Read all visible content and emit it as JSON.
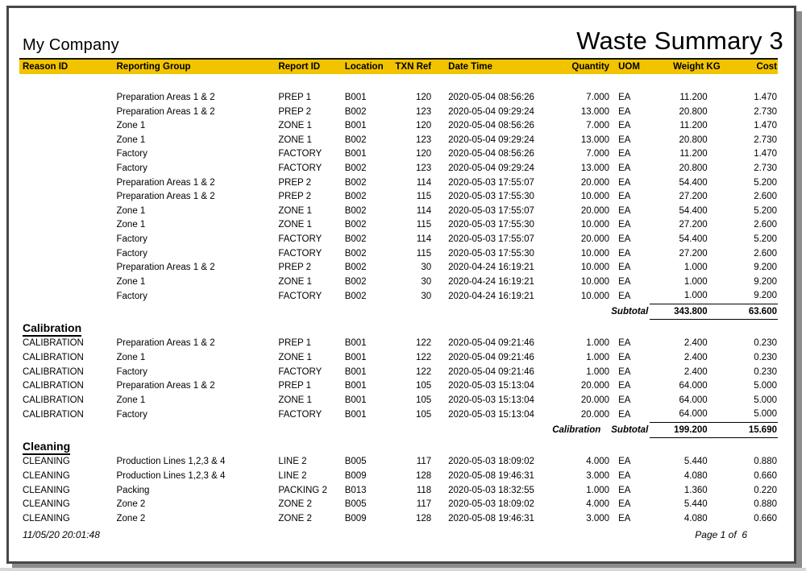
{
  "header": {
    "company": "My Company",
    "title": "Waste Summary 3"
  },
  "colors": {
    "header_band": "#F2C400",
    "frame": "#474747",
    "shadow": "#8c8c8c"
  },
  "footer": {
    "printed": "11/05/20 20:01:48",
    "page": "Page 1 of  6"
  },
  "table": {
    "columns": [
      "Reason ID",
      "Reporting Group",
      "Report ID",
      "Location",
      "TXN Ref",
      "Date Time",
      "Quantity",
      "UOM",
      "Weight KG",
      "Cost"
    ],
    "sections": [
      {
        "title": "",
        "rows": [
          {
            "reason": "",
            "group": "Preparation Areas 1 & 2",
            "report_id": "PREP 1",
            "location": "B001",
            "txn": "120",
            "datetime": "2020-05-04 08:56:26",
            "qty": "7.000",
            "uom": "EA",
            "weight": "11.200",
            "cost": "1.470"
          },
          {
            "reason": "",
            "group": "Preparation Areas 1 & 2",
            "report_id": "PREP 2",
            "location": "B002",
            "txn": "123",
            "datetime": "2020-05-04 09:29:24",
            "qty": "13.000",
            "uom": "EA",
            "weight": "20.800",
            "cost": "2.730"
          },
          {
            "reason": "",
            "group": "Zone 1",
            "report_id": "ZONE 1",
            "location": "B001",
            "txn": "120",
            "datetime": "2020-05-04 08:56:26",
            "qty": "7.000",
            "uom": "EA",
            "weight": "11.200",
            "cost": "1.470"
          },
          {
            "reason": "",
            "group": "Zone 1",
            "report_id": "ZONE 1",
            "location": "B002",
            "txn": "123",
            "datetime": "2020-05-04 09:29:24",
            "qty": "13.000",
            "uom": "EA",
            "weight": "20.800",
            "cost": "2.730"
          },
          {
            "reason": "",
            "group": "Factory",
            "report_id": "FACTORY",
            "location": "B001",
            "txn": "120",
            "datetime": "2020-05-04 08:56:26",
            "qty": "7.000",
            "uom": "EA",
            "weight": "11.200",
            "cost": "1.470"
          },
          {
            "reason": "",
            "group": "Factory",
            "report_id": "FACTORY",
            "location": "B002",
            "txn": "123",
            "datetime": "2020-05-04 09:29:24",
            "qty": "13.000",
            "uom": "EA",
            "weight": "20.800",
            "cost": "2.730"
          },
          {
            "reason": "",
            "group": "Preparation Areas 1 & 2",
            "report_id": "PREP 2",
            "location": "B002",
            "txn": "114",
            "datetime": "2020-05-03 17:55:07",
            "qty": "20.000",
            "uom": "EA",
            "weight": "54.400",
            "cost": "5.200"
          },
          {
            "reason": "",
            "group": "Preparation Areas 1 & 2",
            "report_id": "PREP 2",
            "location": "B002",
            "txn": "115",
            "datetime": "2020-05-03 17:55:30",
            "qty": "10.000",
            "uom": "EA",
            "weight": "27.200",
            "cost": "2.600"
          },
          {
            "reason": "",
            "group": "Zone 1",
            "report_id": "ZONE 1",
            "location": "B002",
            "txn": "114",
            "datetime": "2020-05-03 17:55:07",
            "qty": "20.000",
            "uom": "EA",
            "weight": "54.400",
            "cost": "5.200"
          },
          {
            "reason": "",
            "group": "Zone 1",
            "report_id": "ZONE 1",
            "location": "B002",
            "txn": "115",
            "datetime": "2020-05-03 17:55:30",
            "qty": "10.000",
            "uom": "EA",
            "weight": "27.200",
            "cost": "2.600"
          },
          {
            "reason": "",
            "group": "Factory",
            "report_id": "FACTORY",
            "location": "B002",
            "txn": "114",
            "datetime": "2020-05-03 17:55:07",
            "qty": "20.000",
            "uom": "EA",
            "weight": "54.400",
            "cost": "5.200"
          },
          {
            "reason": "",
            "group": "Factory",
            "report_id": "FACTORY",
            "location": "B002",
            "txn": "115",
            "datetime": "2020-05-03 17:55:30",
            "qty": "10.000",
            "uom": "EA",
            "weight": "27.200",
            "cost": "2.600"
          },
          {
            "reason": "",
            "group": "Preparation Areas 1 & 2",
            "report_id": "PREP 2",
            "location": "B002",
            "txn": "30",
            "datetime": "2020-04-24 16:19:21",
            "qty": "10.000",
            "uom": "EA",
            "weight": "1.000",
            "cost": "9.200"
          },
          {
            "reason": "",
            "group": "Zone 1",
            "report_id": "ZONE 1",
            "location": "B002",
            "txn": "30",
            "datetime": "2020-04-24 16:19:21",
            "qty": "10.000",
            "uom": "EA",
            "weight": "1.000",
            "cost": "9.200"
          },
          {
            "reason": "",
            "group": "Factory",
            "report_id": "FACTORY",
            "location": "B002",
            "txn": "30",
            "datetime": "2020-04-24 16:19:21",
            "qty": "10.000",
            "uom": "EA",
            "weight": "1.000",
            "cost": "9.200"
          }
        ],
        "subtotal": {
          "prefix": "",
          "label": "Subtotal",
          "weight": "343.800",
          "cost": "63.600"
        }
      },
      {
        "title": "Calibration",
        "rows": [
          {
            "reason": "CALIBRATION",
            "group": "Preparation Areas 1 & 2",
            "report_id": "PREP 1",
            "location": "B001",
            "txn": "122",
            "datetime": "2020-05-04 09:21:46",
            "qty": "1.000",
            "uom": "EA",
            "weight": "2.400",
            "cost": "0.230"
          },
          {
            "reason": "CALIBRATION",
            "group": "Zone 1",
            "report_id": "ZONE 1",
            "location": "B001",
            "txn": "122",
            "datetime": "2020-05-04 09:21:46",
            "qty": "1.000",
            "uom": "EA",
            "weight": "2.400",
            "cost": "0.230"
          },
          {
            "reason": "CALIBRATION",
            "group": "Factory",
            "report_id": "FACTORY",
            "location": "B001",
            "txn": "122",
            "datetime": "2020-05-04 09:21:46",
            "qty": "1.000",
            "uom": "EA",
            "weight": "2.400",
            "cost": "0.230"
          },
          {
            "reason": "CALIBRATION",
            "group": "Preparation Areas 1 & 2",
            "report_id": "PREP 1",
            "location": "B001",
            "txn": "105",
            "datetime": "2020-05-03 15:13:04",
            "qty": "20.000",
            "uom": "EA",
            "weight": "64.000",
            "cost": "5.000"
          },
          {
            "reason": "CALIBRATION",
            "group": "Zone 1",
            "report_id": "ZONE 1",
            "location": "B001",
            "txn": "105",
            "datetime": "2020-05-03 15:13:04",
            "qty": "20.000",
            "uom": "EA",
            "weight": "64.000",
            "cost": "5.000"
          },
          {
            "reason": "CALIBRATION",
            "group": "Factory",
            "report_id": "FACTORY",
            "location": "B001",
            "txn": "105",
            "datetime": "2020-05-03 15:13:04",
            "qty": "20.000",
            "uom": "EA",
            "weight": "64.000",
            "cost": "5.000"
          }
        ],
        "subtotal": {
          "prefix": "Calibration",
          "label": "Subtotal",
          "weight": "199.200",
          "cost": "15.690"
        }
      },
      {
        "title": "Cleaning",
        "rows": [
          {
            "reason": "CLEANING",
            "group": "Production Lines 1,2,3 & 4",
            "report_id": "LINE 2",
            "location": "B005",
            "txn": "117",
            "datetime": "2020-05-03 18:09:02",
            "qty": "4.000",
            "uom": "EA",
            "weight": "5.440",
            "cost": "0.880"
          },
          {
            "reason": "CLEANING",
            "group": "Production Lines 1,2,3 & 4",
            "report_id": "LINE 2",
            "location": "B009",
            "txn": "128",
            "datetime": "2020-05-08 19:46:31",
            "qty": "3.000",
            "uom": "EA",
            "weight": "4.080",
            "cost": "0.660"
          },
          {
            "reason": "CLEANING",
            "group": "Packing",
            "report_id": "PACKING 2",
            "location": "B013",
            "txn": "118",
            "datetime": "2020-05-03 18:32:55",
            "qty": "1.000",
            "uom": "EA",
            "weight": "1.360",
            "cost": "0.220"
          },
          {
            "reason": "CLEANING",
            "group": "Zone 2",
            "report_id": "ZONE 2",
            "location": "B005",
            "txn": "117",
            "datetime": "2020-05-03 18:09:02",
            "qty": "4.000",
            "uom": "EA",
            "weight": "5.440",
            "cost": "0.880"
          },
          {
            "reason": "CLEANING",
            "group": "Zone 2",
            "report_id": "ZONE 2",
            "location": "B009",
            "txn": "128",
            "datetime": "2020-05-08 19:46:31",
            "qty": "3.000",
            "uom": "EA",
            "weight": "4.080",
            "cost": "0.660"
          }
        ],
        "subtotal": null
      }
    ]
  }
}
